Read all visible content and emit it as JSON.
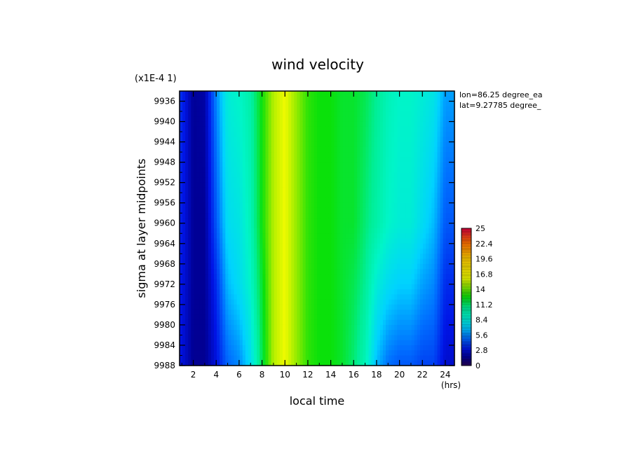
{
  "chart_data": {
    "type": "heatmap",
    "title": "wind velocity",
    "scale_note": "(x1E-4 1)",
    "xlabel": "local time",
    "xunit": "(hrs)",
    "ylabel": "sigma at layer midpoints",
    "xlim": [
      0.8,
      24.8
    ],
    "ylim": [
      9934,
      9988
    ],
    "x_ticks": [
      "2",
      "4",
      "6",
      "8",
      "10",
      "12",
      "14",
      "16",
      "18",
      "20",
      "22",
      "24"
    ],
    "y_ticks": [
      "9936",
      "9940",
      "9944",
      "9948",
      "9952",
      "9956",
      "9960",
      "9964",
      "9968",
      "9972",
      "9976",
      "9980",
      "9984",
      "9988"
    ],
    "info": [
      "lon=86.25 degree_ea",
      "lat=9.27785 degree_"
    ],
    "colorbar": {
      "min": 0,
      "max": 25,
      "tick_labels": [
        "25",
        "22.4",
        "19.6",
        "16.8",
        "14",
        "11.2",
        "8.4",
        "5.6",
        "2.8",
        "0"
      ]
    },
    "hours": [
      1,
      2,
      3,
      4,
      5,
      6,
      7,
      8,
      9,
      10,
      11,
      12,
      13,
      14,
      15,
      16,
      17,
      18,
      19,
      20,
      21,
      22,
      23,
      24
    ],
    "levels": [
      9934,
      9960,
      9972,
      9988
    ],
    "values": [
      [
        3.5,
        1.5,
        1.8,
        5.5,
        8.5,
        9.0,
        10.0,
        12.5,
        15.0,
        16.0,
        14.5,
        13.0,
        12.5,
        12.5,
        12.0,
        12.0,
        11.5,
        10.5,
        9.5,
        9.0,
        9.0,
        8.5,
        8.0,
        6.0
      ],
      [
        3.2,
        1.5,
        1.5,
        4.5,
        7.5,
        8.0,
        9.5,
        12.5,
        15.0,
        16.0,
        14.5,
        13.0,
        12.5,
        12.5,
        12.0,
        12.0,
        11.0,
        10.0,
        9.0,
        8.5,
        8.5,
        7.5,
        6.5,
        4.5
      ],
      [
        3.0,
        1.5,
        1.5,
        3.5,
        6.5,
        7.5,
        9.0,
        12.0,
        15.0,
        16.0,
        14.5,
        13.0,
        12.5,
        12.5,
        12.0,
        11.5,
        10.5,
        8.5,
        7.5,
        7.0,
        7.0,
        6.0,
        5.5,
        3.5
      ],
      [
        2.8,
        1.4,
        1.4,
        2.8,
        4.8,
        5.5,
        7.5,
        11.5,
        15.0,
        16.0,
        14.5,
        13.0,
        12.5,
        12.5,
        12.0,
        11.0,
        9.5,
        6.5,
        5.0,
        4.5,
        4.5,
        4.0,
        4.0,
        2.5
      ]
    ]
  }
}
